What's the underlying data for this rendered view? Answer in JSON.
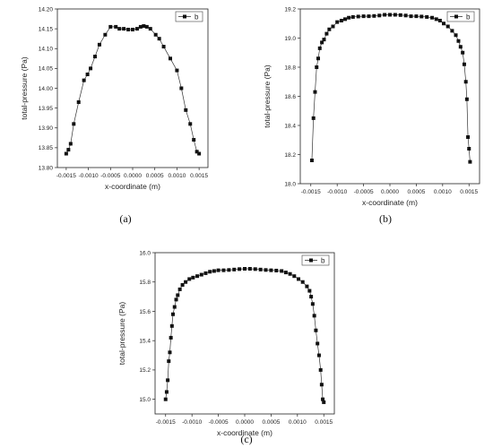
{
  "chart_data": [
    {
      "type": "line",
      "caption": "(a)",
      "xlabel": "x-coordinate (m)",
      "ylabel": "total-pressure (Pa)",
      "xlim": [
        -0.0017,
        0.0017
      ],
      "ylim": [
        13.8,
        14.2
      ],
      "xticks": [
        "-0.0015",
        "-0.0010",
        "-0.0005",
        "0.0000",
        "0.0005",
        "0.0010",
        "0.0015"
      ],
      "yticks": [
        "13.80",
        "13.85",
        "13.90",
        "13.95",
        "14.00",
        "14.05",
        "14.10",
        "14.15",
        "14.20"
      ],
      "legend_position": "top-right",
      "grid": false,
      "series": [
        {
          "name": "b",
          "x": [
            -0.0015,
            -0.00145,
            -0.0014,
            -0.00133,
            -0.00122,
            -0.0011,
            -0.00102,
            -0.00095,
            -0.00085,
            -0.00075,
            -0.00062,
            -0.0005,
            -0.00038,
            -0.0003,
            -0.0002,
            -0.0001,
            0.0,
            0.0001,
            0.00018,
            0.00025,
            0.00032,
            0.0004,
            0.00052,
            0.0006,
            0.0007,
            0.00085,
            0.001,
            0.0011,
            0.0012,
            0.0013,
            0.00138,
            0.00145,
            0.0015
          ],
          "y": [
            13.835,
            13.845,
            13.86,
            13.91,
            13.965,
            14.02,
            14.035,
            14.05,
            14.08,
            14.11,
            14.135,
            14.155,
            14.155,
            14.15,
            14.15,
            14.148,
            14.148,
            14.15,
            14.155,
            14.157,
            14.155,
            14.15,
            14.135,
            14.125,
            14.105,
            14.075,
            14.045,
            14.0,
            13.945,
            13.91,
            13.87,
            13.84,
            13.835
          ]
        }
      ]
    },
    {
      "type": "line",
      "caption": "(b)",
      "xlabel": "x-coordinate (m)",
      "ylabel": "total-pressure (Pa)",
      "xlim": [
        -0.0017,
        0.0017
      ],
      "ylim": [
        18.0,
        19.2
      ],
      "xticks": [
        "-0.0015",
        "-0.0010",
        "-0.0005",
        "0.0000",
        "0.0005",
        "0.0010",
        "0.0015"
      ],
      "yticks": [
        "18.0",
        "18.2",
        "18.4",
        "18.6",
        "18.8",
        "19.0",
        "19.2"
      ],
      "legend_position": "top-right",
      "grid": false,
      "series": [
        {
          "name": "b",
          "x": [
            -0.00148,
            -0.00145,
            -0.00142,
            -0.00139,
            -0.00136,
            -0.00133,
            -0.00129,
            -0.00125,
            -0.0012,
            -0.00115,
            -0.00108,
            -0.001,
            -0.00092,
            -0.00085,
            -0.00078,
            -0.0007,
            -0.0006,
            -0.0005,
            -0.0004,
            -0.0003,
            -0.0002,
            -0.0001,
            0.0,
            0.0001,
            0.0002,
            0.0003,
            0.0004,
            0.0005,
            0.0006,
            0.0007,
            0.0008,
            0.00088,
            0.00095,
            0.00102,
            0.0011,
            0.00118,
            0.00125,
            0.0013,
            0.00134,
            0.00138,
            0.00141,
            0.00144,
            0.00146,
            0.00148,
            0.0015,
            0.00152
          ],
          "y": [
            18.16,
            18.45,
            18.63,
            18.8,
            18.86,
            18.93,
            18.97,
            18.99,
            19.03,
            19.06,
            19.08,
            19.11,
            19.12,
            19.13,
            19.14,
            19.145,
            19.148,
            19.15,
            19.15,
            19.152,
            19.155,
            19.16,
            19.16,
            19.16,
            19.158,
            19.155,
            19.15,
            19.15,
            19.148,
            19.145,
            19.14,
            19.13,
            19.12,
            19.1,
            19.08,
            19.05,
            19.02,
            18.98,
            18.94,
            18.9,
            18.82,
            18.7,
            18.58,
            18.32,
            18.24,
            18.15
          ]
        }
      ]
    },
    {
      "type": "line",
      "caption": "(c)",
      "xlabel": "x-coordinate (m)",
      "ylabel": "total-pressure (Pa)",
      "xlim": [
        -0.0017,
        0.0017
      ],
      "ylim": [
        14.9,
        16.0
      ],
      "xticks": [
        "-0.0015",
        "-0.0010",
        "-0.0005",
        "0.0000",
        "0.0005",
        "0.0010",
        "0.0015"
      ],
      "yticks": [
        "15.0",
        "15.2",
        "15.4",
        "15.6",
        "15.8",
        "16.0"
      ],
      "legend_position": "top-right",
      "grid": false,
      "series": [
        {
          "name": "b",
          "x": [
            -0.0015,
            -0.00148,
            -0.00146,
            -0.00144,
            -0.00142,
            -0.0014,
            -0.00138,
            -0.00136,
            -0.00133,
            -0.0013,
            -0.00127,
            -0.00123,
            -0.00118,
            -0.00112,
            -0.00105,
            -0.00098,
            -0.0009,
            -0.00082,
            -0.00074,
            -0.00066,
            -0.00058,
            -0.0005,
            -0.0004,
            -0.0003,
            -0.0002,
            -0.0001,
            0.0,
            0.0001,
            0.0002,
            0.0003,
            0.0004,
            0.0005,
            0.0006,
            0.0007,
            0.00078,
            0.00086,
            0.00094,
            0.00102,
            0.0011,
            0.00118,
            0.00123,
            0.00126,
            0.00129,
            0.00132,
            0.00135,
            0.00138,
            0.00141,
            0.00144,
            0.00146,
            0.00148,
            0.0015
          ],
          "y": [
            15.0,
            15.05,
            15.13,
            15.26,
            15.32,
            15.42,
            15.5,
            15.58,
            15.63,
            15.68,
            15.71,
            15.75,
            15.78,
            15.8,
            15.82,
            15.83,
            15.84,
            15.85,
            15.86,
            15.87,
            15.875,
            15.88,
            15.88,
            15.882,
            15.885,
            15.888,
            15.89,
            15.89,
            15.888,
            15.885,
            15.882,
            15.88,
            15.878,
            15.875,
            15.865,
            15.855,
            15.84,
            15.82,
            15.8,
            15.77,
            15.74,
            15.7,
            15.65,
            15.57,
            15.47,
            15.38,
            15.3,
            15.2,
            15.1,
            15.0,
            14.98
          ]
        }
      ]
    }
  ]
}
